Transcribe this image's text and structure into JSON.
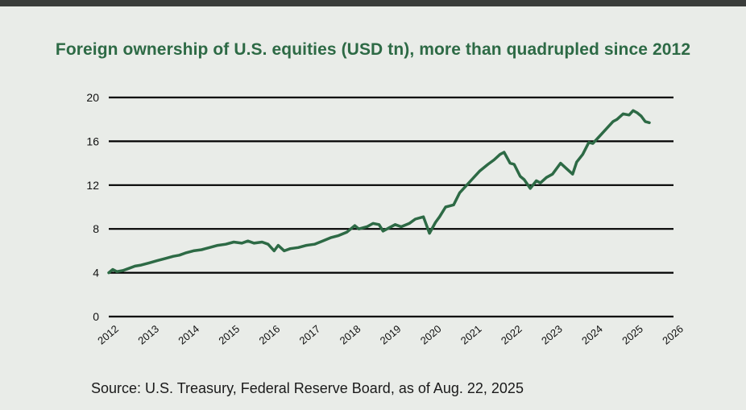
{
  "chart_data": {
    "type": "line",
    "title": "Foreign ownership of U.S. equities (USD tn), more than quadrupled since 2012",
    "source": "Source: U.S. Treasury, Federal Reserve Board, as of Aug. 22, 2025",
    "xlabel": "",
    "ylabel": "",
    "ylim": [
      0,
      20
    ],
    "xlim": [
      2012,
      2026
    ],
    "y_ticks": [
      "0",
      "4",
      "8",
      "12",
      "16",
      "20"
    ],
    "x_ticks": [
      "2012",
      "2013",
      "2014",
      "2015",
      "2016",
      "2017",
      "2018",
      "2019",
      "2020",
      "2021",
      "2022",
      "2023",
      "2024",
      "2025",
      "2026"
    ],
    "line_color": "#2d6a45",
    "series": [
      {
        "name": "Foreign ownership of U.S. equities",
        "x": [
          2012.0,
          2012.1,
          2012.2,
          2012.35,
          2012.5,
          2012.65,
          2012.8,
          2013.0,
          2013.2,
          2013.4,
          2013.6,
          2013.75,
          2013.9,
          2014.1,
          2014.3,
          2014.5,
          2014.7,
          2014.9,
          2015.1,
          2015.3,
          2015.45,
          2015.6,
          2015.8,
          2015.95,
          2016.1,
          2016.2,
          2016.35,
          2016.5,
          2016.7,
          2016.9,
          2017.1,
          2017.3,
          2017.5,
          2017.7,
          2017.9,
          2018.0,
          2018.1,
          2018.2,
          2018.4,
          2018.55,
          2018.7,
          2018.8,
          2018.95,
          2019.1,
          2019.25,
          2019.45,
          2019.6,
          2019.8,
          2019.95,
          2020.1,
          2020.2,
          2020.35,
          2020.55,
          2020.7,
          2020.85,
          2021.0,
          2021.2,
          2021.4,
          2021.55,
          2021.7,
          2021.8,
          2021.95,
          2022.05,
          2022.2,
          2022.3,
          2022.45,
          2022.6,
          2022.7,
          2022.85,
          2023.0,
          2023.2,
          2023.35,
          2023.5,
          2023.6,
          2023.75,
          2023.9,
          2024.0,
          2024.15,
          2024.3,
          2024.5,
          2024.6,
          2024.75,
          2024.9,
          2025.0,
          2025.1,
          2025.2,
          2025.3,
          2025.4
        ],
        "values": [
          4.0,
          4.3,
          4.1,
          4.2,
          4.4,
          4.6,
          4.7,
          4.9,
          5.1,
          5.3,
          5.5,
          5.6,
          5.8,
          6.0,
          6.1,
          6.3,
          6.5,
          6.6,
          6.8,
          6.7,
          6.9,
          6.7,
          6.8,
          6.6,
          6.0,
          6.5,
          6.0,
          6.2,
          6.3,
          6.5,
          6.6,
          6.9,
          7.2,
          7.4,
          7.7,
          8.0,
          8.3,
          8.0,
          8.2,
          8.5,
          8.4,
          7.8,
          8.1,
          8.4,
          8.2,
          8.5,
          8.9,
          9.1,
          7.6,
          8.6,
          9.1,
          10.0,
          10.2,
          11.3,
          11.9,
          12.5,
          13.3,
          13.9,
          14.3,
          14.8,
          15.0,
          14.0,
          13.9,
          12.8,
          12.5,
          11.7,
          12.4,
          12.2,
          12.7,
          13.0,
          14.0,
          13.5,
          13.0,
          14.1,
          14.8,
          15.9,
          15.8,
          16.4,
          17.0,
          17.8,
          18.0,
          18.5,
          18.4,
          18.8,
          18.6,
          18.3,
          17.8,
          17.7
        ]
      }
    ]
  }
}
